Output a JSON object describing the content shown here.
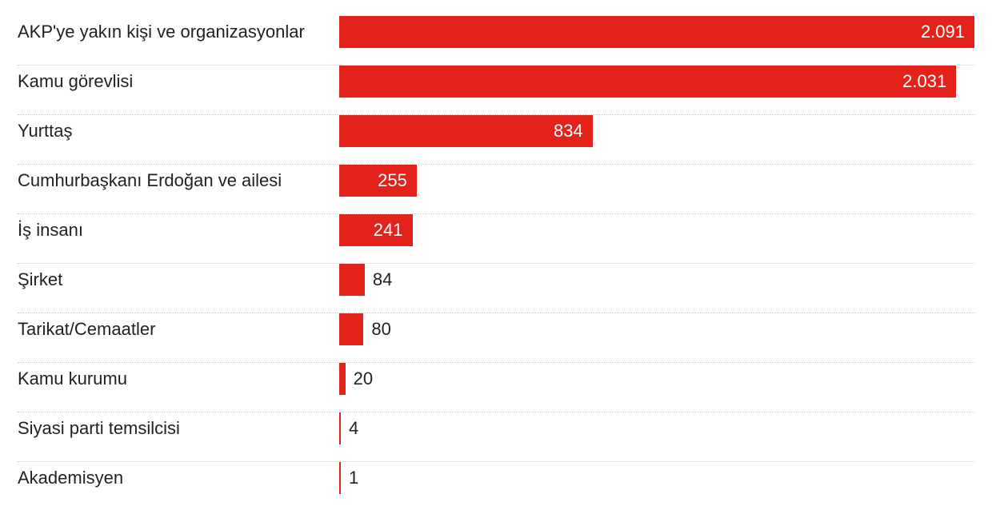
{
  "chart_data": {
    "type": "bar",
    "orientation": "horizontal",
    "title": "",
    "xlabel": "",
    "ylabel": "",
    "bar_color": "#e3221b",
    "grid": "dotted row separators",
    "legend": "none",
    "xlim": [
      0,
      2091
    ],
    "categories": [
      "AKP'ye yakın kişi ve organizasyonlar",
      "Kamu görevlisi",
      "Yurttaş",
      "Cumhurbaşkanı Erdoğan ve ailesi",
      "İş insanı",
      "Şirket",
      "Tarikat/Cemaatler",
      "Kamu kurumu",
      "Siyasi parti temsilcisi",
      "Akademisyen"
    ],
    "values": [
      2091,
      2031,
      834,
      255,
      241,
      84,
      80,
      20,
      4,
      1
    ],
    "value_labels": [
      "2.091",
      "2.031",
      "834",
      "255",
      "241",
      "84",
      "80",
      "20",
      "4",
      "1"
    ]
  }
}
